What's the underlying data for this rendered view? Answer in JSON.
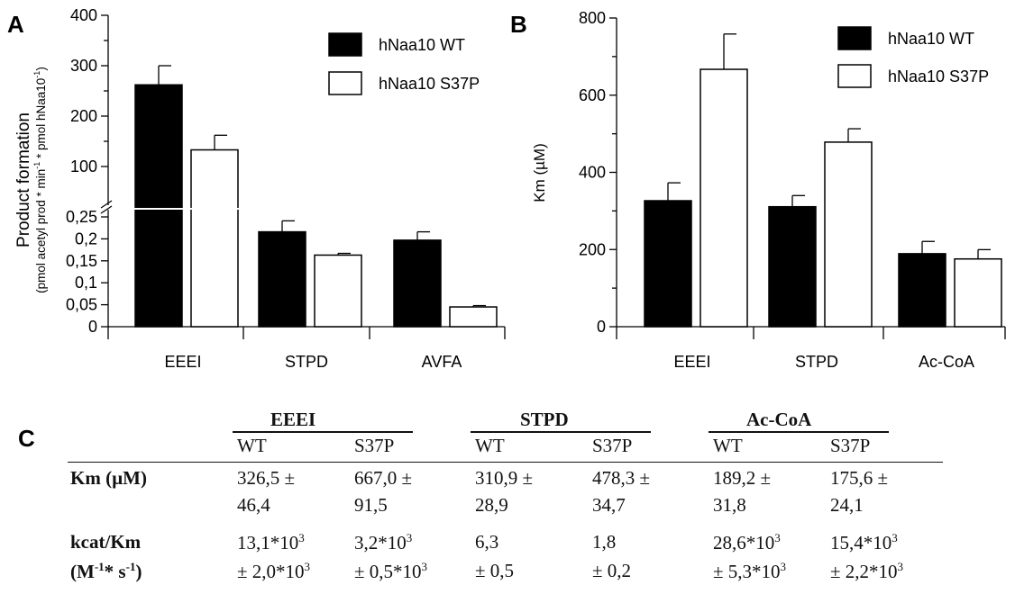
{
  "panels": {
    "a": "A",
    "b": "B",
    "c": "C"
  },
  "legend": {
    "wt": "hNaa10 WT",
    "s37p": "hNaa10 S37P"
  },
  "chart_data": [
    {
      "panel": "A",
      "type": "bar",
      "ylabel_line1": "Product formation",
      "ylabel_line2": "(pmol acetyl prod * min",
      "ylabel_sup1": "-1",
      "ylabel_mid": " * pmol hNaa10",
      "ylabel_sup2": "-1",
      "ylabel_end": ")",
      "categories": [
        "EEEI",
        "STPD",
        "AVFA"
      ],
      "axis_break": true,
      "y_upper_ticks": [
        "100",
        "200",
        "300",
        "400"
      ],
      "y_lower_ticks": [
        "0",
        "0,05",
        "0,1",
        "0,15",
        "0,2",
        "0,25"
      ],
      "ylim_upper": [
        100,
        400
      ],
      "ylim_lower": [
        0,
        0.25
      ],
      "legend_position": "top-right",
      "series": [
        {
          "name": "hNaa10 WT",
          "fill": "#000000",
          "values": [
            262,
            0.216,
            0.197
          ],
          "errors": [
            38,
            0.025,
            0.019
          ]
        },
        {
          "name": "hNaa10 S37P",
          "fill": "#ffffff",
          "values": [
            133,
            0.163,
            0.045
          ],
          "errors": [
            29,
            0.004,
            0.003
          ]
        }
      ]
    },
    {
      "panel": "B",
      "type": "bar",
      "ylabel": "Km (µM)",
      "categories": [
        "EEEI",
        "STPD",
        "Ac-CoA"
      ],
      "ylim": [
        0,
        800
      ],
      "y_ticks": [
        "0",
        "200",
        "400",
        "600",
        "800"
      ],
      "legend_position": "top-right",
      "series": [
        {
          "name": "hNaa10 WT",
          "fill": "#000000",
          "values": [
            326.5,
            310.9,
            189.2
          ],
          "errors": [
            46.4,
            28.9,
            31.8
          ]
        },
        {
          "name": "hNaa10 S37P",
          "fill": "#ffffff",
          "values": [
            667.0,
            478.3,
            175.6
          ],
          "errors": [
            91.5,
            34.7,
            24.1
          ]
        }
      ]
    },
    {
      "panel": "C",
      "type": "table",
      "groups": [
        "EEEI",
        "STPD",
        "Ac-CoA"
      ],
      "subheaders": [
        "WT",
        "S37P",
        "WT",
        "S37P",
        "WT",
        "S37P"
      ],
      "rows": [
        {
          "label": "Km (µM)",
          "cells": [
            [
              "326,5 ±",
              "46,4"
            ],
            [
              "667,0 ±",
              "91,5"
            ],
            [
              "310,9 ±",
              "28,9"
            ],
            [
              "478,3 ±",
              "34,7"
            ],
            [
              "189,2 ±",
              "31,8"
            ],
            [
              "175,6 ±",
              "24,1"
            ]
          ]
        },
        {
          "label_line1": "kcat/Km",
          "label_line2": "(M",
          "label_sup1": "-1",
          "label_mid": "* s",
          "label_sup2": "-1",
          "label_end": ")",
          "cells": [
            [
              "13,1*10",
              "3",
              "± 2,0*10",
              "3"
            ],
            [
              "3,2*10",
              "3",
              "± 0,5*10",
              "3"
            ],
            [
              "6,3",
              "",
              "± 0,5",
              ""
            ],
            [
              "1,8",
              "",
              "± 0,2",
              ""
            ],
            [
              "28,6*10",
              "3",
              "± 5,3*10",
              "3"
            ],
            [
              "15,4*10",
              "3",
              "± 2,2*10",
              "3"
            ]
          ]
        }
      ]
    }
  ]
}
